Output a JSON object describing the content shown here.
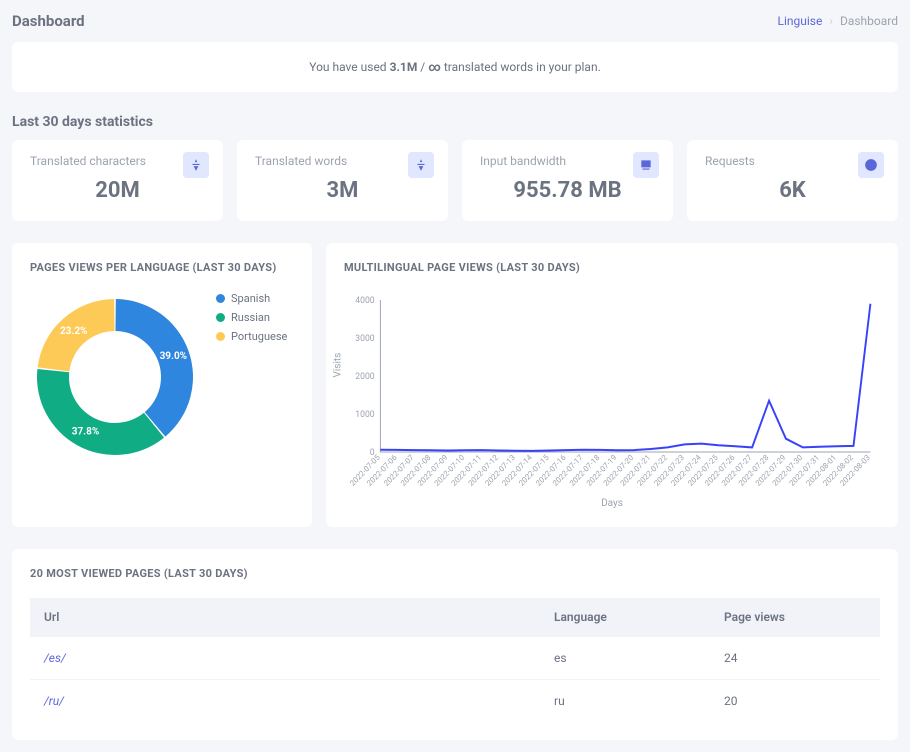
{
  "header": {
    "title": "Dashboard",
    "breadcrumb_link": "Linguise",
    "breadcrumb_current": "Dashboard"
  },
  "usage_banner": {
    "prefix": "You have used ",
    "count": "3.1M",
    "mid": " / ",
    "limit": "∞",
    "suffix": " translated words in your plan."
  },
  "stats": {
    "section_title": "Last 30 days statistics",
    "cards": [
      {
        "label": "Translated characters",
        "value": "20M",
        "icon": "translate-icon"
      },
      {
        "label": "Translated words",
        "value": "3M",
        "icon": "translate-icon"
      },
      {
        "label": "Input bandwidth",
        "value": "955.78 MB",
        "icon": "bandwidth-icon"
      },
      {
        "label": "Requests",
        "value": "6K",
        "icon": "requests-icon"
      }
    ]
  },
  "donut_chart": {
    "title": "PAGES VIEWS PER LANGUAGE (LAST 30 DAYS)",
    "inner_radius": 46,
    "outer_radius": 78,
    "background": "#ffffff",
    "slices": [
      {
        "label": "Spanish",
        "pct": 39.0,
        "color": "#2e86de"
      },
      {
        "label": "Russian",
        "pct": 37.8,
        "color": "#10ac84"
      },
      {
        "label": "Portuguese",
        "pct": 23.2,
        "color": "#feca57"
      }
    ],
    "label_fontsize": 10,
    "label_color": "#ffffff",
    "legend_fontsize": 11
  },
  "line_chart": {
    "title": "MULTILINGUAL PAGE VIEWS (LAST 30 DAYS)",
    "y_label": "Visits",
    "x_label": "Days",
    "line_color": "#3742fa",
    "line_width": 2,
    "grid_color": "#f0f0f0",
    "axis_color": "#9ca3af",
    "background": "#ffffff",
    "ylim": [
      0,
      4000
    ],
    "ytick_step": 1000,
    "x_labels": [
      "2022-07-05",
      "2022-07-06",
      "2022-07-07",
      "2022-07-08",
      "2022-07-09",
      "2022-07-10",
      "2022-07-11",
      "2022-07-12",
      "2022-07-13",
      "2022-07-14",
      "2022-07-15",
      "2022-07-16",
      "2022-07-17",
      "2022-07-18",
      "2022-07-19",
      "2022-07-20",
      "2022-07-21",
      "2022-07-22",
      "2022-07-23",
      "2022-07-24",
      "2022-07-25",
      "2022-07-26",
      "2022-07-27",
      "2022-07-28",
      "2022-07-29",
      "2022-07-30",
      "2022-07-31",
      "2022-08-01",
      "2022-08-02",
      "2022-08-03"
    ],
    "values": [
      60,
      55,
      50,
      45,
      40,
      45,
      50,
      40,
      35,
      30,
      40,
      50,
      60,
      55,
      45,
      50,
      80,
      120,
      200,
      220,
      180,
      150,
      120,
      1350,
      350,
      120,
      140,
      150,
      160,
      3900
    ]
  },
  "pages_table": {
    "title": "20 MOST VIEWED PAGES (LAST 30 DAYS)",
    "columns": [
      "Url",
      "Language",
      "Page views"
    ],
    "col_widths": [
      "60%",
      "20%",
      "20%"
    ],
    "header_bg": "#f1f3f9",
    "rows": [
      {
        "url": "/es/",
        "language": "es",
        "page_views": "24"
      },
      {
        "url": "/ru/",
        "language": "ru",
        "page_views": "20"
      }
    ]
  }
}
